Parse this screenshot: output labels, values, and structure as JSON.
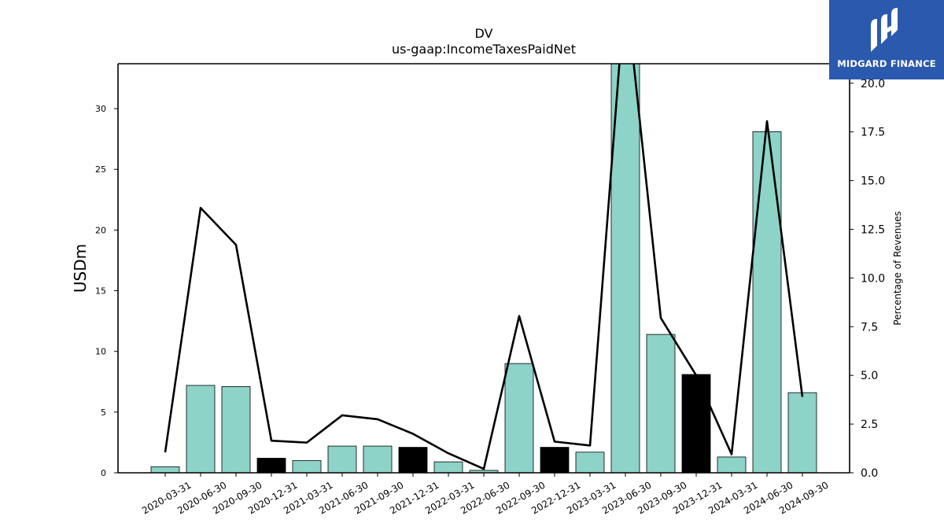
{
  "brand": {
    "name": "MIDGARD FINANCE",
    "bg_color": "#2b59ad"
  },
  "chart_data": {
    "type": "bar",
    "title": "DV",
    "subtitle": "us-gaap:IncomeTaxesPaidNet",
    "ylabel": "USDm",
    "y2label": "Percentage of Revenues",
    "categories": [
      "2020-03-31",
      "2020-06-30",
      "2020-09-30",
      "2020-12-31",
      "2021-03-31",
      "2021-06-30",
      "2021-09-30",
      "2021-12-31",
      "2022-03-31",
      "2022-06-30",
      "2022-09-30",
      "2022-12-31",
      "2023-03-31",
      "2023-06-30",
      "2023-09-30",
      "2023-12-31",
      "2024-03-31",
      "2024-06-30",
      "2024-09-30"
    ],
    "series": [
      {
        "type": "bar",
        "values": [
          0.5,
          7.2,
          7.1,
          1.2,
          1.0,
          2.2,
          2.2,
          2.1,
          0.9,
          0.2,
          9.0,
          2.1,
          1.7,
          34.5,
          11.4,
          8.1,
          1.3,
          28.1,
          6.6
        ],
        "highlight_indices": [
          3,
          7,
          11,
          15
        ],
        "color": "#8dd3c7",
        "highlight_color": "#000000"
      },
      {
        "type": "line",
        "axis": "right",
        "values": [
          1.05,
          13.6,
          11.7,
          1.65,
          1.55,
          2.95,
          2.75,
          2.0,
          1.0,
          0.2,
          8.05,
          1.6,
          1.4,
          25.0,
          7.95,
          5.0,
          0.95,
          18.05,
          3.9
        ],
        "color": "#000000"
      }
    ],
    "ylim": [
      0,
      33.7
    ],
    "y2lim": [
      0,
      21.0
    ],
    "yticks": [
      0,
      5,
      10,
      15,
      20,
      25,
      30
    ],
    "y2ticks": [
      "0.0",
      "2.5",
      "5.0",
      "7.5",
      "10.0",
      "12.5",
      "15.0",
      "17.5",
      "20.0"
    ],
    "grid": false
  }
}
